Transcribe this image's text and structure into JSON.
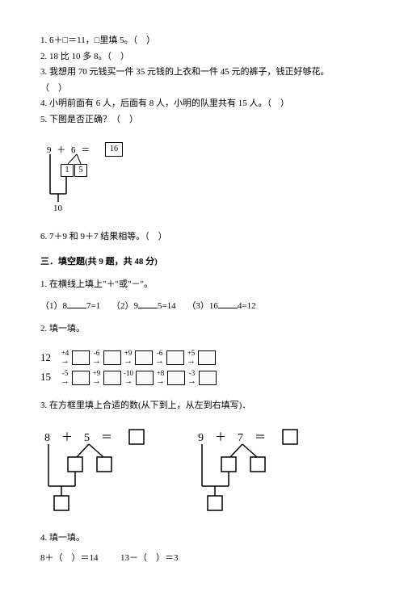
{
  "q1": "1. 6＋□＝11，□里填 5。（　）",
  "q2": "2. 18 比 10 多 8。（　）",
  "q3": "3. 我想用 70 元钱买一件 35 元钱的上衣和一件 45 元的裤子，钱正好够花。",
  "q3b": "（　）",
  "q4": "4. 小明前面有 6 人，后面有 8 人，小明的队里共有 15 人。（　）",
  "q5": "5. 下图是否正确？（　）",
  "d1_expr": "9 ＋ 6 ＝",
  "d1_16": "16",
  "d1_1": "1",
  "d1_5": "5",
  "d1_10": "10",
  "q6": "6. 7＋9 和 9＋7 结果相等。（　）",
  "sec3_title": "三．填空题(共 9 题，共 48 分)",
  "s3q1": "1. 在横线上填上\"＋\"或\"－\"。",
  "s3q1_1a": "（1）8",
  "s3q1_1b": "7=1",
  "s3q1_2a": "（2）9",
  "s3q1_2b": "5=14",
  "s3q1_3a": "（3）16",
  "s3q1_3b": "4=12",
  "s3q2": "2. 填一填。",
  "chain1_start": "12",
  "chain1_ops": [
    "+4",
    "-6",
    "+9",
    "-6",
    "+5"
  ],
  "chain2_start": "15",
  "chain2_ops": [
    "-5",
    "+9",
    "-10",
    "+8",
    "-3"
  ],
  "s3q3": "3. 在方框里填上合适的数(从下到上，从左到右填写)．",
  "d3a": "8　＋　5　＝",
  "d3b": "9　＋　7　＝",
  "s3q4": "4. 填一填。",
  "s3q4_1": "8＋（　）＝14",
  "s3q4_2": "13－（　）＝3"
}
